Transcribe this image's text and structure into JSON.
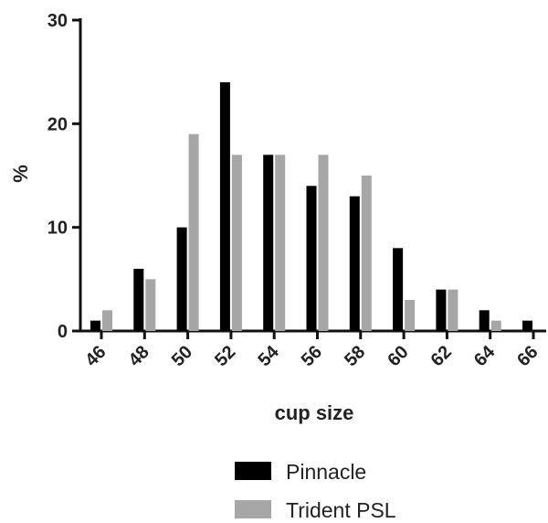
{
  "chart_data": {
    "type": "bar",
    "title": "",
    "xlabel": "cup size",
    "ylabel": "%",
    "categories": [
      "46",
      "48",
      "50",
      "52",
      "54",
      "56",
      "58",
      "60",
      "62",
      "64",
      "66"
    ],
    "series": [
      {
        "name": "Pinnacle",
        "color": "#000000",
        "values": [
          1,
          6,
          10,
          24,
          17,
          14,
          13,
          8,
          4,
          2,
          1
        ]
      },
      {
        "name": "Trident PSL",
        "color": "#a6a6a6",
        "values": [
          2,
          5,
          19,
          17,
          17,
          17,
          15,
          3,
          4,
          1,
          0
        ]
      }
    ],
    "ylim": [
      0,
      30
    ],
    "yticks": [
      0,
      10,
      20,
      30
    ],
    "grid": false,
    "legend_position": "bottom"
  }
}
